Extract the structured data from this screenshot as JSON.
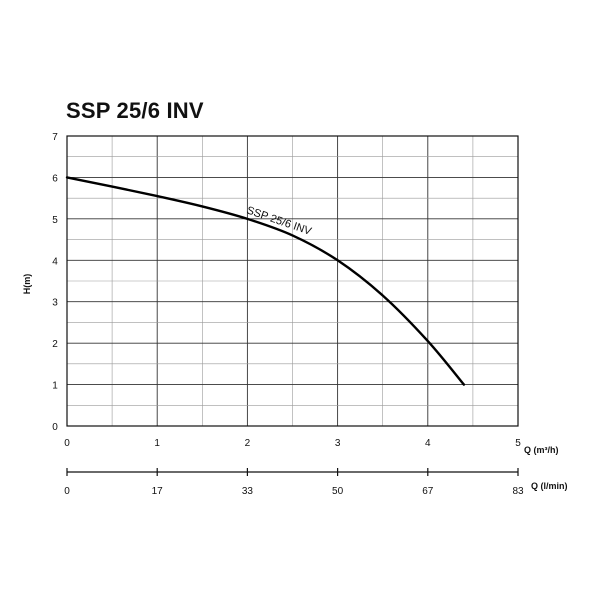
{
  "chart_data": {
    "type": "line",
    "title": "SSP 25/6 INV",
    "xlabel": "Q (m³/h)",
    "ylabel": "H(m)",
    "xlim": [
      0,
      5
    ],
    "ylim": [
      0,
      7
    ],
    "x_ticks": [
      "0",
      "1",
      "2",
      "3",
      "4",
      "5"
    ],
    "y_ticks": [
      "0",
      "1",
      "2",
      "3",
      "4",
      "5",
      "6",
      "7"
    ],
    "secondary_x_axis": {
      "label": "Q (l/min)",
      "ticks": [
        "0",
        "17",
        "33",
        "50",
        "67",
        "83"
      ]
    },
    "grid": true,
    "series": [
      {
        "name": "SSP 25/6 INV",
        "x": [
          0,
          0.5,
          1,
          1.5,
          2,
          2.5,
          3,
          3.5,
          4,
          4.4
        ],
        "y": [
          6.0,
          5.78,
          5.55,
          5.3,
          5.0,
          4.6,
          4.0,
          3.15,
          2.05,
          1.0
        ]
      }
    ]
  }
}
